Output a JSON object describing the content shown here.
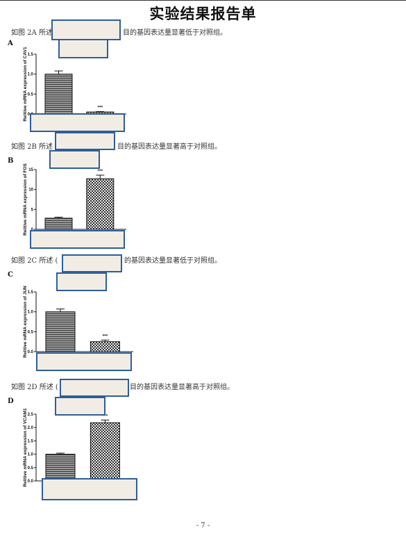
{
  "title": "实验结果报告单",
  "sections": [
    {
      "label": "A",
      "para_prefix": "如图 2A 所述",
      "para_suffix": "目的基因表达量显著低于对照组。",
      "chart_data": {
        "type": "bar",
        "ylabel": "Relitive mRNA expression of CAV1",
        "ylim": [
          0,
          1.5
        ],
        "yticks": [
          "0.0",
          "0.5",
          "1.0",
          "1.5"
        ],
        "categories": [
          "",
          ""
        ],
        "values": [
          1.0,
          0.05
        ],
        "errors": [
          0.08,
          0.01
        ],
        "significance": [
          "",
          "***"
        ]
      }
    },
    {
      "label": "B",
      "para_prefix": "如图 2B 所述",
      "para_suffix": "目的基因表达量显著高于对照组。",
      "chart_data": {
        "type": "bar",
        "ylabel": "Relitive mRNA expression of FOS",
        "ylim": [
          0,
          15
        ],
        "yticks": [
          "0",
          "5",
          "10",
          "15"
        ],
        "categories": [
          "",
          ""
        ],
        "values": [
          2.8,
          12.7
        ],
        "errors": [
          0.25,
          0.9
        ],
        "significance": [
          "",
          "***"
        ]
      }
    },
    {
      "label": "C",
      "para_prefix": "如图 2C 所述 (",
      "para_suffix": "的基因表达量显著低于对照组。",
      "chart_data": {
        "type": "bar",
        "ylabel": "Relitive mRNA expression of JUN",
        "ylim": [
          0,
          1.5
        ],
        "yticks": [
          "0.0",
          "0.5",
          "1.0",
          "1.5"
        ],
        "categories": [
          "",
          ""
        ],
        "values": [
          1.0,
          0.25
        ],
        "errors": [
          0.07,
          0.04
        ],
        "significance": [
          "",
          "***"
        ]
      }
    },
    {
      "label": "D",
      "para_prefix": "如图 2D 所述 (",
      "para_suffix": "目的基因表达量显著高于对照组。",
      "chart_data": {
        "type": "bar",
        "ylabel": "Relitive mRNA expression of VCAM1",
        "ylim": [
          0,
          2.5
        ],
        "yticks": [
          "0.0",
          "0.5",
          "1.0",
          "1.5",
          "2.0",
          "2.5"
        ],
        "categories": [
          "",
          ""
        ],
        "values": [
          1.0,
          2.18
        ],
        "errors": [
          0.04,
          0.1
        ],
        "significance": [
          "",
          "***"
        ]
      }
    }
  ],
  "page_number": "- 7 -"
}
